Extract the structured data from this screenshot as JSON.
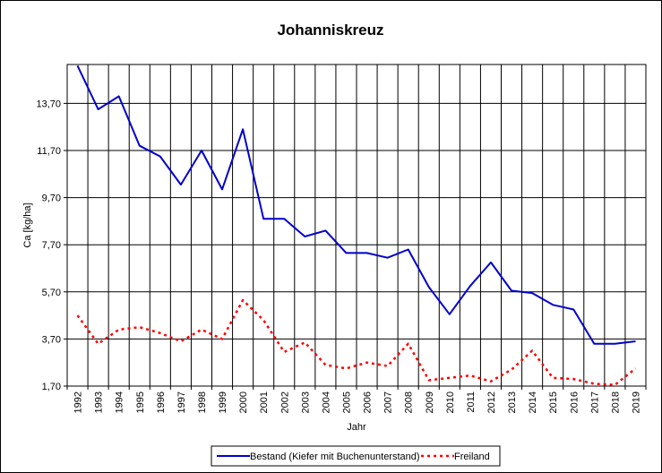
{
  "chart_data": {
    "type": "line",
    "title": "Johanniskreuz",
    "xlabel": "Jahr",
    "ylabel": "Ca [kg/ha]",
    "x": [
      "1992",
      "1993",
      "1994",
      "1995",
      "1996",
      "1997",
      "1998",
      "1999",
      "2000",
      "2001",
      "2002",
      "2003",
      "2004",
      "2005",
      "2006",
      "2007",
      "2008",
      "2009",
      "2010",
      "2011",
      "2012",
      "2013",
      "2014",
      "2015",
      "2016",
      "2017",
      "2018",
      "2019"
    ],
    "yticks": [
      "1,70",
      "3,70",
      "5,70",
      "7,70",
      "9,70",
      "11,70",
      "13,70"
    ],
    "ylim": [
      1.7,
      15.35
    ],
    "grid": true,
    "legend_position": "bottom",
    "series": [
      {
        "name": "Bestand (Kiefer mit Buchenunterstand)",
        "color": "#0000CC",
        "style": "solid",
        "values": [
          15.3,
          13.45,
          14.0,
          11.9,
          11.45,
          10.25,
          11.7,
          10.05,
          12.6,
          8.8,
          8.8,
          8.05,
          8.3,
          7.35,
          7.35,
          7.15,
          7.5,
          5.9,
          4.75,
          5.95,
          6.95,
          5.75,
          5.65,
          5.15,
          4.95,
          3.5,
          3.5,
          3.6
        ]
      },
      {
        "name": "Freiland",
        "color": "#FF0000",
        "style": "dashed",
        "values": [
          4.7,
          3.5,
          4.1,
          4.2,
          3.95,
          3.6,
          4.1,
          3.7,
          5.35,
          4.5,
          3.15,
          3.55,
          2.6,
          2.45,
          2.7,
          2.55,
          3.5,
          1.95,
          2.05,
          2.15,
          1.9,
          2.4,
          3.2,
          2.05,
          2.0,
          1.8,
          1.75,
          2.45
        ]
      }
    ]
  }
}
